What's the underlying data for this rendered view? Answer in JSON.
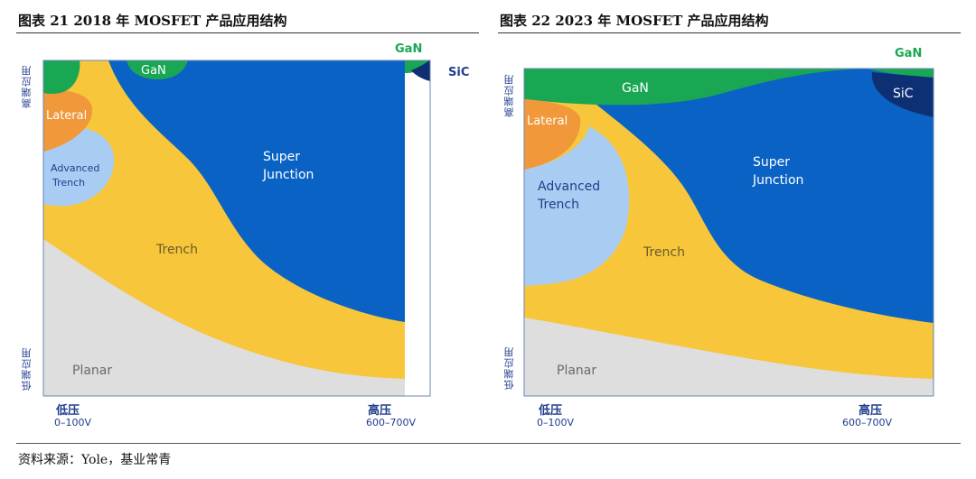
{
  "figures": [
    {
      "title": "图表 21 2018 年 MOSFET 产品应用结构",
      "y_high": "高端应用",
      "y_low": "低端应用",
      "x_low": "低压",
      "x_low_sub": "0–100V",
      "x_high": "高压",
      "x_high_sub": "600–700V",
      "regions": {
        "gan_top": "GaN",
        "gan_corner": "GaN",
        "sic": "SiC",
        "lateral": "Lateral",
        "advanced_1": "Advanced",
        "advanced_2": "Trench",
        "super_1": "Super",
        "super_2": "Junction",
        "trench": "Trench",
        "planar": "Planar"
      }
    },
    {
      "title": "图表 22 2023 年 MOSFET 产品应用结构",
      "y_high": "高端应用",
      "y_low": "低端应用",
      "x_low": "低压",
      "x_low_sub": "0–100V",
      "x_high": "高压",
      "x_high_sub": "600–700V",
      "regions": {
        "gan_top": "GaN",
        "gan_corner": "GaN",
        "sic": "SiC",
        "lateral": "Lateral",
        "advanced_1": "Advanced",
        "advanced_2": "Trench",
        "super_1": "Super",
        "super_2": "Junction",
        "trench": "Trench",
        "planar": "Planar"
      }
    }
  ],
  "colors": {
    "blue": "#0a63c4",
    "yellow": "#f7c63a",
    "orange": "#f0983a",
    "light_blue": "#a9cdf2",
    "green": "#19a753",
    "navy": "#0d2f73",
    "gray": "#dededf",
    "border": "#6b84b6"
  },
  "source": "资料来源：Yole，基业常青"
}
